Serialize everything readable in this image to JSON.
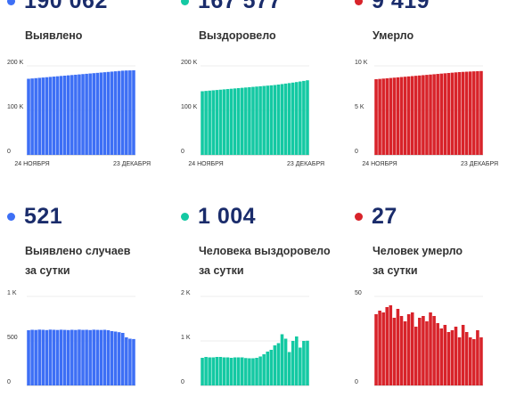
{
  "colors": {
    "blue": "#3d6ff5",
    "green": "#14c9a3",
    "red": "#d8232a"
  },
  "chart_data": [
    {
      "type": "bar",
      "stat": "190 062",
      "label_lines": [
        "Выявлено"
      ],
      "color": "#3d6ff5",
      "ylim": [
        0,
        200000
      ],
      "yticks": [
        {
          "value": 0,
          "label": "0"
        },
        {
          "value": 100000,
          "label": "100 K"
        },
        {
          "value": 200000,
          "label": "200 K"
        }
      ],
      "xlabels": [
        "24 НОЯБРЯ",
        "23 ДЕКАБРЯ"
      ],
      "values": [
        171000,
        171700,
        172400,
        173100,
        173800,
        174500,
        175200,
        175900,
        176600,
        177300,
        178000,
        178700,
        179400,
        180100,
        180800,
        181500,
        182200,
        182900,
        183600,
        184300,
        185000,
        185700,
        186400,
        187100,
        187800,
        188500,
        189200,
        189600,
        189800,
        190062
      ]
    },
    {
      "type": "bar",
      "stat": "167 577",
      "label_lines": [
        "Выздоровело"
      ],
      "color": "#14c9a3",
      "ylim": [
        0,
        200000
      ],
      "yticks": [
        {
          "value": 0,
          "label": "0"
        },
        {
          "value": 100000,
          "label": "100 K"
        },
        {
          "value": 200000,
          "label": "200 K"
        }
      ],
      "xlabels": [
        "24 НОЯБРЯ",
        "23 ДЕКАБРЯ"
      ],
      "values": [
        143000,
        143700,
        144400,
        145100,
        145800,
        146500,
        147200,
        147900,
        148600,
        149300,
        150000,
        150700,
        151400,
        152100,
        152800,
        153500,
        154200,
        154900,
        155600,
        156300,
        157000,
        158000,
        159100,
        160200,
        161300,
        162400,
        163600,
        164900,
        166200,
        167577
      ]
    },
    {
      "type": "bar",
      "stat": "9 419",
      "label_lines": [
        "Умерло"
      ],
      "color": "#d8232a",
      "ylim": [
        0,
        10000
      ],
      "yticks": [
        {
          "value": 0,
          "label": "0"
        },
        {
          "value": 5000,
          "label": "5 K"
        },
        {
          "value": 10000,
          "label": "10 K"
        }
      ],
      "xlabels": [
        "24 НОЯБРЯ",
        "23 ДЕКАБРЯ"
      ],
      "values": [
        8500,
        8535,
        8570,
        8605,
        8640,
        8675,
        8710,
        8745,
        8780,
        8815,
        8850,
        8885,
        8920,
        8955,
        8990,
        9025,
        9060,
        9095,
        9130,
        9165,
        9200,
        9235,
        9270,
        9300,
        9325,
        9345,
        9365,
        9385,
        9400,
        9419
      ]
    },
    {
      "type": "bar",
      "stat": "521",
      "label_lines": [
        "Выявлено случаев",
        "за сутки"
      ],
      "color": "#3d6ff5",
      "ylim": [
        0,
        1000
      ],
      "yticks": [
        {
          "value": 0,
          "label": "0"
        },
        {
          "value": 500,
          "label": "500"
        },
        {
          "value": 1000,
          "label": "1 K"
        }
      ],
      "xlabels": [],
      "values": [
        620,
        625,
        623,
        627,
        625,
        622,
        627,
        625,
        623,
        626,
        624,
        622,
        625,
        623,
        627,
        624,
        625,
        622,
        626,
        624,
        623,
        625,
        620,
        610,
        605,
        598,
        590,
        540,
        525,
        521
      ]
    },
    {
      "type": "bar",
      "stat": "1 004",
      "label_lines": [
        "Человека выздоровело",
        "за сутки"
      ],
      "color": "#14c9a3",
      "ylim": [
        0,
        2000
      ],
      "yticks": [
        {
          "value": 0,
          "label": "0"
        },
        {
          "value": 1000,
          "label": "1 K"
        },
        {
          "value": 2000,
          "label": "2 K"
        }
      ],
      "xlabels": [],
      "values": [
        620,
        640,
        630,
        630,
        640,
        640,
        630,
        630,
        620,
        630,
        630,
        630,
        615,
        610,
        610,
        620,
        650,
        700,
        760,
        800,
        900,
        950,
        1150,
        1050,
        750,
        1000,
        1100,
        850,
        1000,
        1004
      ]
    },
    {
      "type": "bar",
      "stat": "27",
      "label_lines": [
        "Человек умерло",
        "за сутки"
      ],
      "color": "#d8232a",
      "ylim": [
        0,
        50
      ],
      "yticks": [
        {
          "value": 0,
          "label": "0"
        },
        {
          "value": 50,
          "label": "50"
        }
      ],
      "xlabels": [],
      "values": [
        40,
        42,
        41,
        44,
        45,
        38,
        43,
        39,
        36,
        40,
        41,
        33,
        38,
        39,
        36,
        41,
        39,
        35,
        32,
        34,
        30,
        31,
        33,
        27,
        34,
        30,
        27,
        26,
        31,
        27
      ]
    }
  ]
}
